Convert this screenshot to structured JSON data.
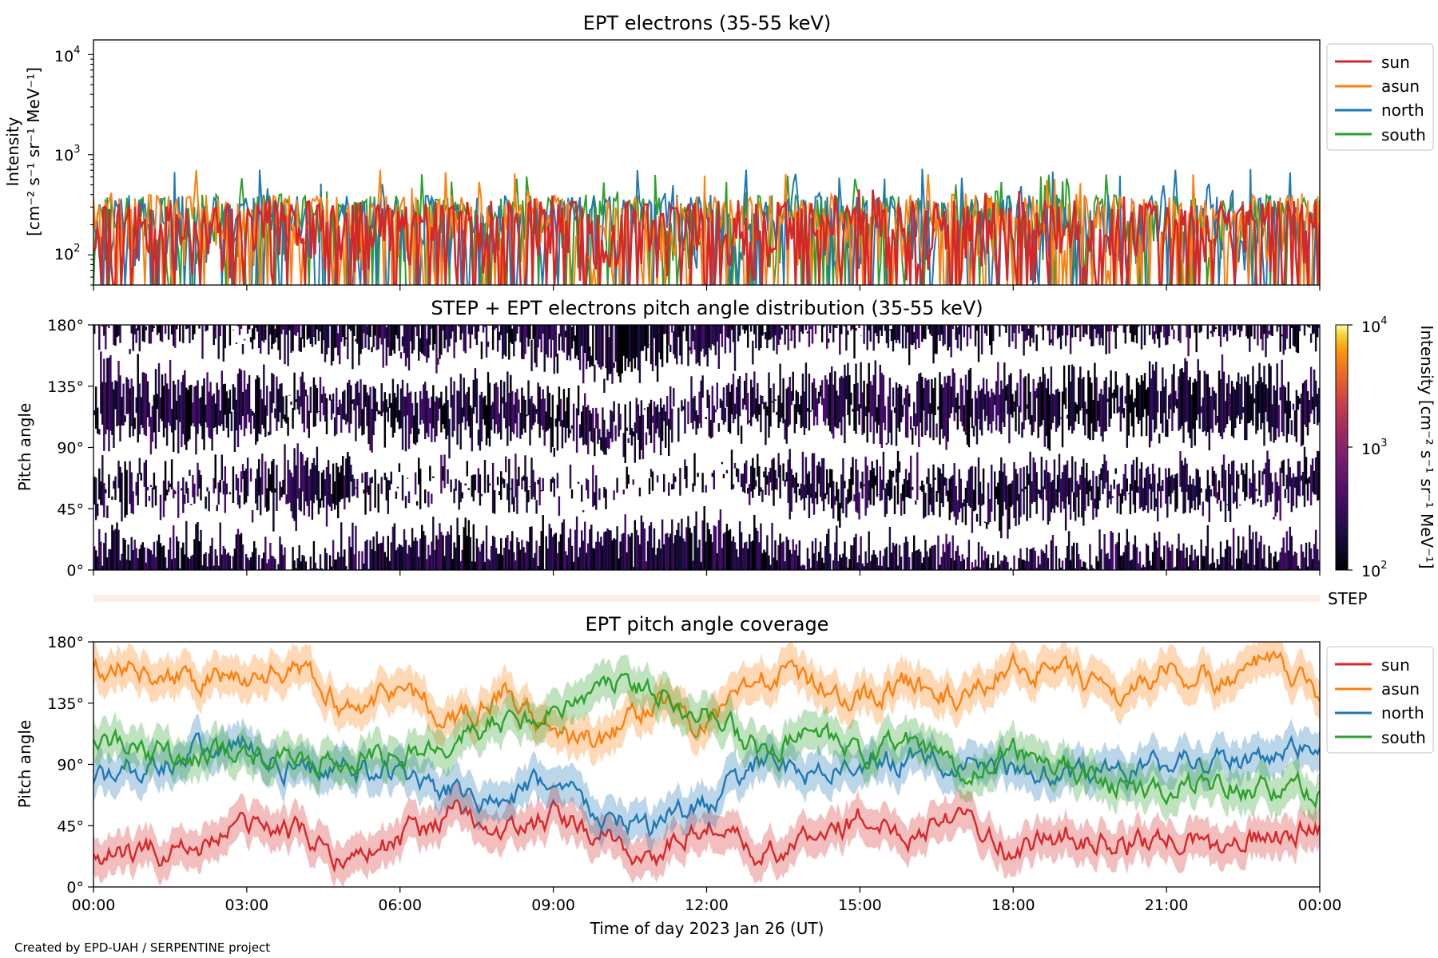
{
  "panel1": {
    "title": "EPT electrons (35-55 keV)",
    "ylabel_line1": "Intensity",
    "ylabel_line2": "[cm⁻² s⁻¹ sr⁻¹ MeV⁻¹]",
    "ytick_labels": [
      "10",
      "10",
      "10"
    ],
    "ytick_exponents": [
      "2",
      "3",
      "4"
    ]
  },
  "panel2": {
    "title": "STEP + EPT electrons pitch angle distribution (35-55 keV)",
    "ylabel": "Pitch angle",
    "colorbar_label": "Intensity [cm⁻² s⁻¹ sr⁻¹ MeV⁻¹]",
    "colorbar_tick_labels": [
      "10",
      "10",
      "10"
    ],
    "colorbar_tick_exponents": [
      "2",
      "3",
      "4"
    ]
  },
  "step_strip": {
    "label": "STEP"
  },
  "panel3": {
    "title": "EPT pitch angle coverage",
    "ylabel": "Pitch angle"
  },
  "pitch_ticks": [
    "0°",
    "45°",
    "90°",
    "135°",
    "180°"
  ],
  "xtick_labels": [
    "00:00",
    "03:00",
    "06:00",
    "09:00",
    "12:00",
    "15:00",
    "18:00",
    "21:00",
    "00:00"
  ],
  "xlabel": "Time of day 2023 Jan 26 (UT)",
  "legend": [
    "sun",
    "asun",
    "north",
    "south"
  ],
  "credit": "Created by EPD-UAH / SERPENTINE project",
  "colors": {
    "sun": "#d62728",
    "asun": "#ff7f0e",
    "north": "#1f77b4",
    "south": "#2ca02c",
    "step": "#fdefe7"
  },
  "chart_data": [
    {
      "type": "line",
      "title": "EPT electrons (35-55 keV)",
      "x_range": [
        "00:00",
        "24:00"
      ],
      "y_scale": "log",
      "ylim": [
        50,
        14000
      ],
      "ylabel": "Intensity [cm⁻² s⁻¹ sr⁻¹ MeV⁻¹]",
      "legend_position": "right",
      "series": [
        {
          "name": "sun",
          "typical_range": [
            50,
            350
          ],
          "max": 450
        },
        {
          "name": "asun",
          "typical_range": [
            70,
            400
          ],
          "max": 720
        },
        {
          "name": "north",
          "typical_range": [
            70,
            400
          ],
          "max": 730
        },
        {
          "name": "south",
          "typical_range": [
            70,
            400
          ],
          "max": 640
        }
      ]
    },
    {
      "type": "heatmap",
      "title": "STEP + EPT electrons pitch angle distribution (35-55 keV)",
      "x_range": [
        "00:00",
        "24:00"
      ],
      "ylim": [
        0,
        180
      ],
      "colorbar_scale": "log",
      "colorbar_range": [
        100,
        10000
      ],
      "colormap": "inferno",
      "gap_bands": [
        {
          "name": "sun",
          "hour": [
            0,
            2,
            4,
            6,
            8,
            10,
            12,
            14,
            16,
            18,
            20,
            22,
            24
          ],
          "pitch": [
            32,
            40,
            25,
            45,
            38,
            42,
            52,
            30,
            35,
            22,
            34,
            30,
            38
          ]
        },
        {
          "name": "north",
          "hour": [
            0,
            2,
            4,
            6,
            8,
            10,
            12,
            14,
            16,
            18,
            20,
            22,
            24
          ],
          "pitch": [
            85,
            82,
            95,
            80,
            88,
            75,
            90,
            92,
            85,
            88,
            90,
            85,
            92
          ]
        },
        {
          "name": "asun",
          "hour": [
            0,
            2,
            4,
            6,
            8,
            10,
            12,
            14,
            16,
            18,
            20,
            22,
            24
          ],
          "pitch": [
            160,
            155,
            150,
            145,
            150,
            130,
            145,
            160,
            150,
            158,
            155,
            160,
            150
          ]
        }
      ]
    },
    {
      "type": "line",
      "title": "EPT pitch angle coverage",
      "x_range": [
        "00:00",
        "24:00"
      ],
      "ylim": [
        0,
        180
      ],
      "ylabel": "Pitch angle",
      "legend_position": "right",
      "x_hours": [
        0,
        1,
        2,
        3,
        4,
        5,
        6,
        7,
        8,
        9,
        10,
        11,
        12,
        13,
        14,
        15,
        16,
        17,
        18,
        19,
        20,
        21,
        22,
        23,
        24
      ],
      "series": [
        {
          "name": "sun",
          "values": [
            20,
            25,
            30,
            45,
            40,
            20,
            35,
            55,
            40,
            50,
            35,
            20,
            50,
            20,
            35,
            50,
            40,
            60,
            25,
            40,
            30,
            35,
            28,
            38,
            45
          ]
        },
        {
          "name": "asun",
          "values": [
            165,
            160,
            150,
            155,
            160,
            130,
            150,
            120,
            145,
            110,
            105,
            140,
            115,
            160,
            150,
            140,
            150,
            135,
            165,
            155,
            140,
            160,
            150,
            165,
            140
          ]
        },
        {
          "name": "north",
          "values": [
            80,
            90,
            100,
            105,
            85,
            90,
            80,
            70,
            60,
            80,
            50,
            45,
            60,
            90,
            85,
            90,
            95,
            90,
            85,
            80,
            85,
            90,
            95,
            88,
            110
          ]
        },
        {
          "name": "south",
          "values": [
            105,
            100,
            95,
            100,
            90,
            95,
            95,
            110,
            120,
            130,
            150,
            145,
            130,
            100,
            110,
            95,
            105,
            85,
            100,
            90,
            75,
            70,
            80,
            70,
            70
          ]
        }
      ]
    }
  ]
}
